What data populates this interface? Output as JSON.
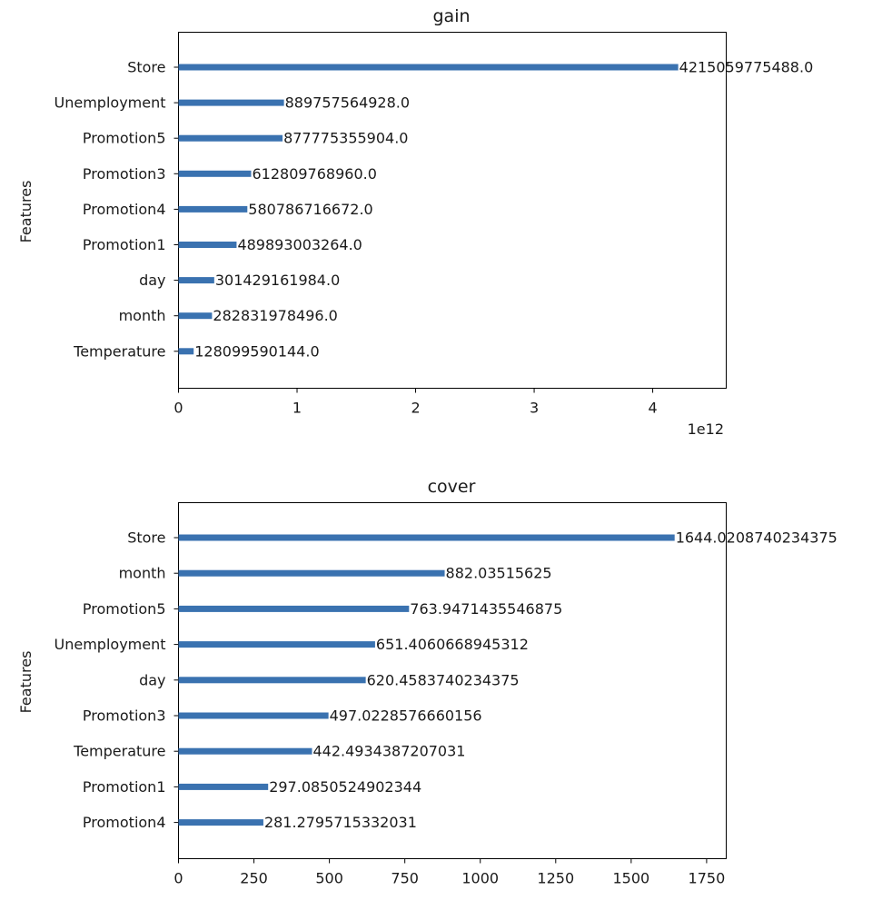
{
  "chart_data": [
    {
      "type": "bar",
      "orientation": "horizontal",
      "title": "gain",
      "xlabel": "",
      "ylabel": "Features",
      "x_offset_text": "1e12",
      "x_scale": 1000000000000.0,
      "xlim": [
        0,
        4.62
      ],
      "xticks": [
        0,
        1,
        2,
        3,
        4
      ],
      "xtick_labels": [
        "0",
        "1",
        "2",
        "3",
        "4"
      ],
      "categories": [
        "Store",
        "Unemployment",
        "Promotion5",
        "Promotion3",
        "Promotion4",
        "Promotion1",
        "day",
        "month",
        "Temperature"
      ],
      "values": [
        4215059775488.0,
        889757564928.0,
        877775355904.0,
        612809768960.0,
        580786716672.0,
        489893003264.0,
        301429161984.0,
        282831978496.0,
        128099590144.0
      ],
      "value_labels": [
        "4215059775488.0",
        "889757564928.0",
        "877775355904.0",
        "612809768960.0",
        "580786716672.0",
        "489893003264.0",
        "301429161984.0",
        "282831978496.0",
        "128099590144.0"
      ],
      "bar_color": "#3a72b0",
      "grid": false
    },
    {
      "type": "bar",
      "orientation": "horizontal",
      "title": "cover",
      "xlabel": "",
      "ylabel": "Features",
      "x_scale": 1,
      "xlim": [
        0,
        1815
      ],
      "xticks": [
        0,
        250,
        500,
        750,
        1000,
        1250,
        1500,
        1750
      ],
      "xtick_labels": [
        "0",
        "250",
        "500",
        "750",
        "1000",
        "1250",
        "1500",
        "1750"
      ],
      "categories": [
        "Store",
        "month",
        "Promotion5",
        "Unemployment",
        "day",
        "Promotion3",
        "Temperature",
        "Promotion1",
        "Promotion4"
      ],
      "values": [
        1644.0208740234375,
        882.03515625,
        763.9471435546875,
        651.4060668945312,
        620.4583740234375,
        497.0228576660156,
        442.4934387207031,
        297.0850524902344,
        281.2795715332031
      ],
      "value_labels": [
        "1644.0208740234375",
        "882.03515625",
        "763.9471435546875",
        "651.4060668945312",
        "620.4583740234375",
        "497.0228576660156",
        "442.4934387207031",
        "297.0850524902344",
        "281.2795715332031"
      ],
      "bar_color": "#3a72b0",
      "grid": false
    }
  ]
}
